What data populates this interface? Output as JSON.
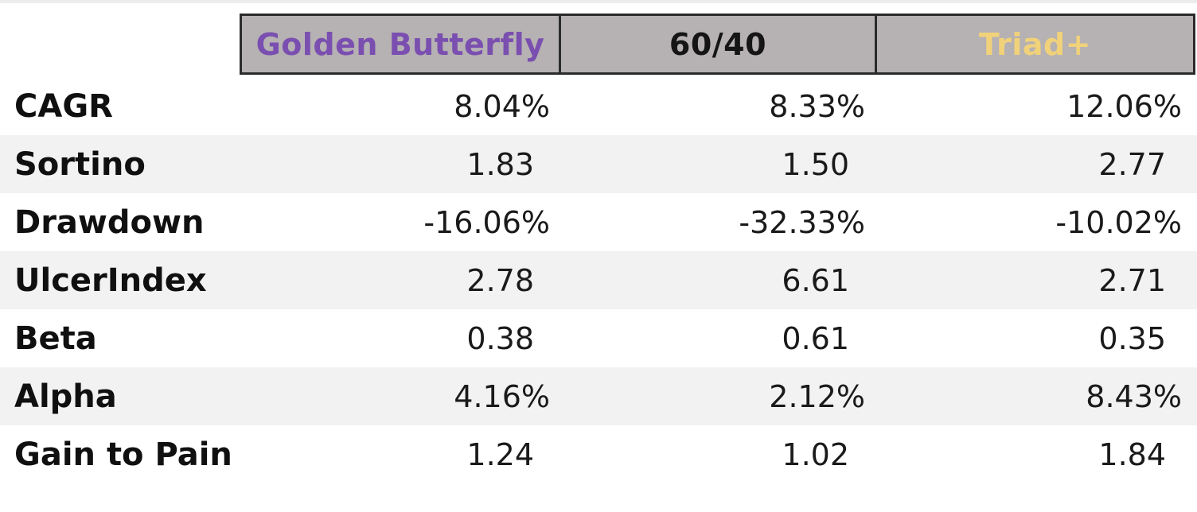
{
  "chart_data": {
    "type": "table",
    "columns": [
      "Golden Butterfly",
      "60/40",
      "Triad+"
    ],
    "column_colors": [
      "#7a4fb0",
      "#151515",
      "#f1d27a"
    ],
    "header_background": "#b6b1b2",
    "rows": [
      {
        "label": "CAGR",
        "values": [
          "8.04%",
          "8.33%",
          "12.06%"
        ]
      },
      {
        "label": "Sortino",
        "values": [
          "1.83",
          "1.50",
          "2.77"
        ]
      },
      {
        "label": "Drawdown",
        "values": [
          "-16.06%",
          "-32.33%",
          "-10.02%"
        ]
      },
      {
        "label": "UlcerIndex",
        "values": [
          "2.78",
          "6.61",
          "2.71"
        ]
      },
      {
        "label": "Beta",
        "values": [
          "0.38",
          "0.61",
          "0.35"
        ]
      },
      {
        "label": "Alpha",
        "values": [
          "4.16%",
          "2.12%",
          "8.43%"
        ]
      },
      {
        "label": "Gain to Pain",
        "values": [
          "1.24",
          "1.02",
          "1.84"
        ]
      }
    ]
  }
}
